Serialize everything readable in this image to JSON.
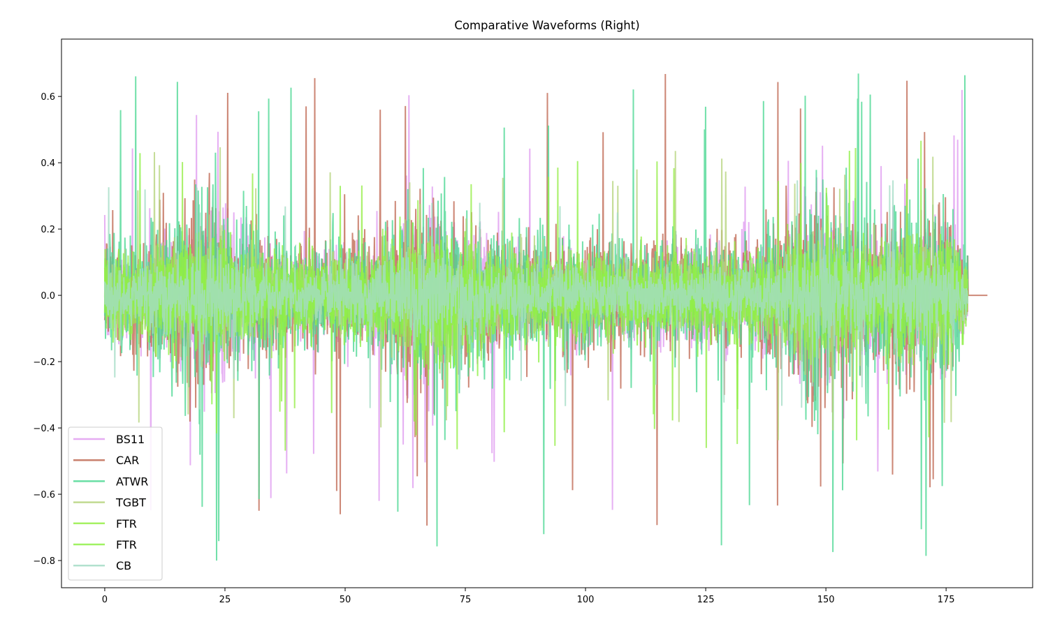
{
  "chart_data": {
    "type": "line",
    "title": "Comparative Waveforms (Right)",
    "xlabel": "",
    "ylabel": "",
    "xlim": [
      -9,
      193
    ],
    "ylim": [
      -0.882,
      0.773
    ],
    "xticks": [
      0,
      25,
      50,
      75,
      100,
      125,
      150,
      175
    ],
    "xtick_labels": [
      "0",
      "25",
      "50",
      "75",
      "100",
      "125",
      "150",
      "175"
    ],
    "yticks": [
      -0.8,
      -0.6,
      -0.4,
      -0.2,
      0.0,
      0.2,
      0.4,
      0.6
    ],
    "ytick_labels": [
      "−0.8",
      "−0.6",
      "−0.4",
      "−0.2",
      "0.0",
      "0.2",
      "0.4",
      "0.6"
    ],
    "grid": false,
    "legend_position": "lower-left",
    "envelope": {
      "x": [
        0,
        5,
        15,
        22,
        28,
        40,
        55,
        65,
        70,
        80,
        100,
        120,
        140,
        145,
        150,
        160,
        170,
        175,
        179.5
      ],
      "amplitude": [
        0.16,
        0.14,
        0.2,
        0.26,
        0.17,
        0.13,
        0.15,
        0.24,
        0.24,
        0.15,
        0.14,
        0.14,
        0.16,
        0.24,
        0.25,
        0.18,
        0.25,
        0.22,
        0.1
      ]
    },
    "series": [
      {
        "name": "BS11",
        "color": "#e09cf0",
        "x_end": 179.5,
        "peak_max": 0.62,
        "peak_min": -0.67
      },
      {
        "name": "CAR",
        "color": "#c06a55",
        "x_end": 183.6,
        "peak_max": 0.68,
        "peak_min": -0.71
      },
      {
        "name": "ATWR",
        "color": "#4fd895",
        "x_end": 179.5,
        "peak_max": 0.7,
        "peak_min": -0.81
      },
      {
        "name": "TGBT",
        "color": "#b6d47e",
        "x_end": 179.5,
        "peak_max": 0.45,
        "peak_min": -0.44
      },
      {
        "name": "FTR",
        "color": "#96ee48",
        "x_end": 179.5,
        "peak_max": 0.47,
        "peak_min": -0.47
      },
      {
        "name": "FTR",
        "color": "#8ff046",
        "x_end": 179.5,
        "peak_max": 0.45,
        "peak_min": -0.45
      },
      {
        "name": "CB",
        "color": "#a4dcc6",
        "x_end": 179.5,
        "peak_max": 0.35,
        "peak_min": -0.35
      }
    ]
  }
}
